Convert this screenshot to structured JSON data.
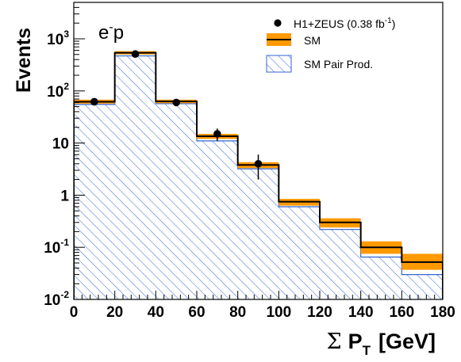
{
  "chart_data": {
    "type": "bar",
    "process_label_base": "e",
    "process_label_sup": "-",
    "process_label_tail": "p",
    "x_bins": [
      0,
      20,
      40,
      60,
      80,
      100,
      120,
      140,
      160,
      180
    ],
    "xlim": [
      0,
      180
    ],
    "ylim": [
      0.01,
      5000
    ],
    "log_scale_y": true,
    "grid": false,
    "legend_position": "top-right",
    "x_ticks": [
      "0",
      "20",
      "40",
      "60",
      "80",
      "100",
      "120",
      "140",
      "160",
      "180"
    ],
    "y_ticks": [
      {
        "base": "10",
        "exp": "-2",
        "value": 0.01
      },
      {
        "base": "10",
        "exp": "-1",
        "value": 0.1
      },
      {
        "base": "1",
        "exp": "",
        "value": 1
      },
      {
        "base": "10",
        "exp": "",
        "value": 10
      },
      {
        "base": "10",
        "exp": "2",
        "value": 100
      },
      {
        "base": "10",
        "exp": "3",
        "value": 1000
      }
    ],
    "xlabel": {
      "sigma": "Σ",
      "main": "P",
      "sub": "T",
      "unit": "[GeV]"
    },
    "ylabel": "Events",
    "legend": {
      "data": {
        "text": "H1+ZEUS (0.38 fb",
        "sup": "-1",
        "tail": ")"
      },
      "sm": "SM",
      "pair": "SM Pair Prod."
    },
    "series": [
      {
        "name": "H1+ZEUS (0.38 fb-1)",
        "kind": "points",
        "x": [
          10,
          30,
          50,
          70,
          90
        ],
        "y": [
          62,
          510,
          60,
          15,
          4
        ],
        "err_low": [
          8,
          23,
          8,
          4,
          2
        ],
        "err_high": [
          8,
          23,
          8,
          4,
          2
        ]
      },
      {
        "name": "SM",
        "kind": "step",
        "values": [
          62,
          540,
          63,
          13.5,
          3.8,
          0.75,
          0.3,
          0.1,
          0.052
        ],
        "band_low": [
          57,
          500,
          58,
          12,
          3.3,
          0.63,
          0.24,
          0.075,
          0.037
        ],
        "band_high": [
          68,
          580,
          68,
          15,
          4.3,
          0.85,
          0.36,
          0.13,
          0.075
        ]
      },
      {
        "name": "SM Pair Prod.",
        "kind": "hatched",
        "values": [
          55,
          470,
          57,
          11,
          3.2,
          0.6,
          0.22,
          0.065,
          0.03
        ]
      }
    ],
    "colors": {
      "sm_band": "#ff9900",
      "sm_line": "#000000",
      "pair_hatch": "#3366cc",
      "points": "#000000"
    }
  }
}
